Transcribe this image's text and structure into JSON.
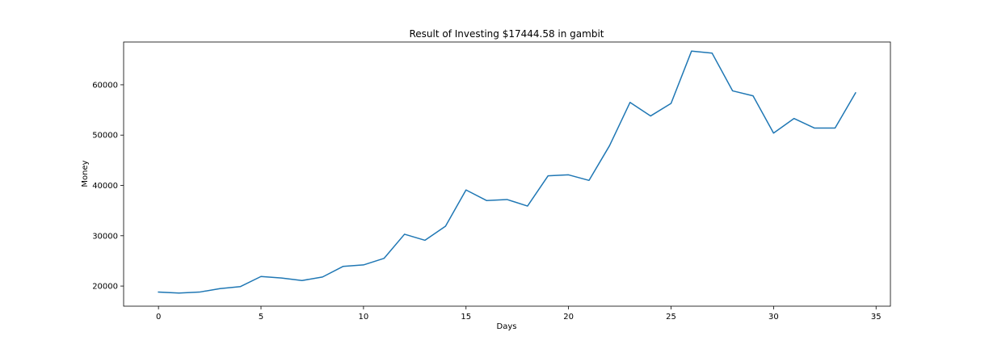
{
  "chart_data": {
    "type": "line",
    "title": "Result of Investing $17444.58 in gambit",
    "xlabel": "Days",
    "ylabel": "Money",
    "xlim": [
      -1.7,
      35.7
    ],
    "ylim": [
      16000,
      68500
    ],
    "xticks": [
      0,
      5,
      10,
      15,
      20,
      25,
      30,
      35
    ],
    "yticks": [
      20000,
      30000,
      40000,
      50000,
      60000
    ],
    "grid": false,
    "colors": {
      "line": "#1f77b4",
      "axes": "#000000"
    },
    "series": [
      {
        "x": [
          0,
          1,
          2,
          3,
          4,
          5,
          6,
          7,
          8,
          9,
          10,
          11,
          12,
          13,
          14,
          15,
          16,
          17,
          18,
          19,
          20,
          21,
          22,
          23,
          24,
          25,
          26,
          27,
          28,
          29,
          30,
          31,
          32,
          33,
          34
        ],
        "values": [
          18800,
          18600,
          18800,
          19500,
          19900,
          21900,
          21600,
          21100,
          21800,
          23900,
          24200,
          25500,
          30300,
          29100,
          31900,
          39100,
          37000,
          37200,
          35900,
          41900,
          42100,
          41000,
          47900,
          56500,
          53800,
          56300,
          66700,
          66300,
          58800,
          57800,
          50400,
          53300,
          51400,
          51400,
          58400
        ]
      }
    ]
  }
}
